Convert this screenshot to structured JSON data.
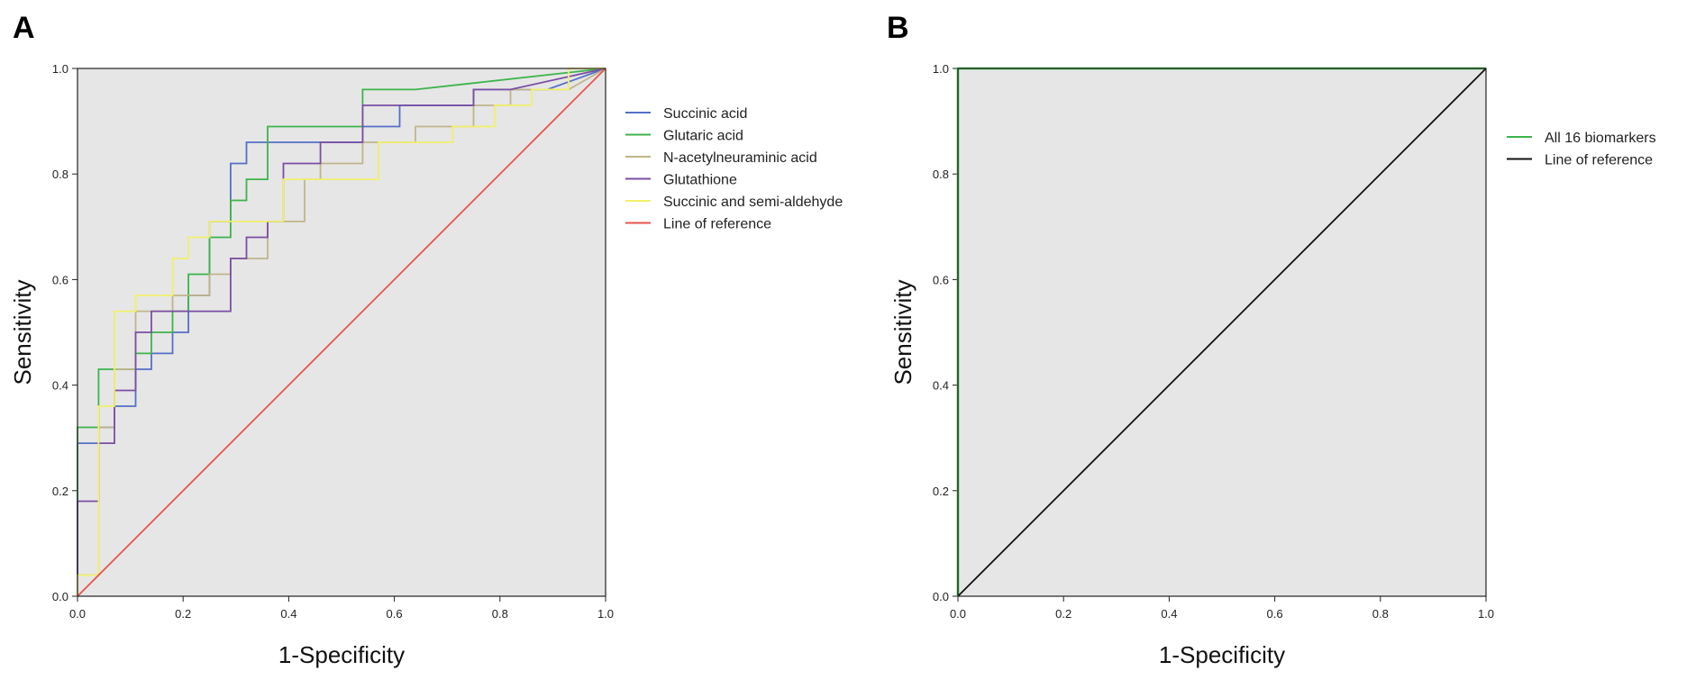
{
  "chart_data": [
    {
      "type": "line",
      "panel": "A",
      "xlabel": "1-Specificity",
      "ylabel": "Sensitivity",
      "xlim": [
        0,
        1
      ],
      "ylim": [
        0,
        1
      ],
      "xticks": [
        "0.0",
        "0.2",
        "0.4",
        "0.6",
        "0.8",
        "1.0"
      ],
      "yticks": [
        "0.0",
        "0.2",
        "0.4",
        "0.6",
        "0.8",
        "1.0"
      ],
      "grid": false,
      "legend_position": "right",
      "series": [
        {
          "name": "Succinic acid",
          "color": "#5470c6",
          "step": true,
          "x": [
            0,
            0,
            0.04,
            0.04,
            0.07,
            0.07,
            0.11,
            0.11,
            0.14,
            0.14,
            0.18,
            0.18,
            0.21,
            0.21,
            0.25,
            0.25,
            0.29,
            0.29,
            0.32,
            0.32,
            0.39,
            0.39,
            0.54,
            0.54,
            0.61,
            0.61,
            0.75,
            0.75,
            0.89,
            1.0
          ],
          "y": [
            0,
            0.29,
            0.29,
            0.32,
            0.32,
            0.36,
            0.36,
            0.43,
            0.43,
            0.46,
            0.46,
            0.5,
            0.5,
            0.57,
            0.57,
            0.71,
            0.71,
            0.82,
            0.82,
            0.86,
            0.86,
            0.86,
            0.86,
            0.89,
            0.89,
            0.93,
            0.93,
            0.96,
            0.96,
            1.0
          ]
        },
        {
          "name": "Glutaric acid",
          "color": "#3cb44b",
          "step": true,
          "x": [
            0,
            0,
            0.04,
            0.04,
            0.07,
            0.07,
            0.11,
            0.11,
            0.14,
            0.14,
            0.18,
            0.18,
            0.21,
            0.21,
            0.25,
            0.25,
            0.29,
            0.29,
            0.32,
            0.32,
            0.36,
            0.36,
            0.54,
            0.54,
            0.64,
            1.0
          ],
          "y": [
            0,
            0.32,
            0.32,
            0.43,
            0.43,
            0.43,
            0.43,
            0.46,
            0.46,
            0.5,
            0.5,
            0.54,
            0.54,
            0.61,
            0.61,
            0.68,
            0.68,
            0.75,
            0.75,
            0.79,
            0.79,
            0.89,
            0.89,
            0.96,
            0.96,
            1.0
          ]
        },
        {
          "name": "N-acetylneuraminic acid",
          "color": "#c0b58a",
          "step": true,
          "x": [
            0,
            0,
            0.04,
            0.04,
            0.07,
            0.07,
            0.11,
            0.11,
            0.18,
            0.18,
            0.25,
            0.25,
            0.29,
            0.29,
            0.36,
            0.36,
            0.43,
            0.43,
            0.46,
            0.46,
            0.54,
            0.54,
            0.64,
            0.64,
            0.75,
            0.75,
            0.82,
            0.82,
            0.93,
            1.0
          ],
          "y": [
            0,
            0.04,
            0.04,
            0.32,
            0.32,
            0.43,
            0.43,
            0.54,
            0.54,
            0.57,
            0.57,
            0.61,
            0.61,
            0.64,
            0.64,
            0.71,
            0.71,
            0.79,
            0.79,
            0.82,
            0.82,
            0.86,
            0.86,
            0.89,
            0.89,
            0.93,
            0.93,
            0.96,
            0.96,
            1.0
          ]
        },
        {
          "name": "Glutathione",
          "color": "#7b4ea3",
          "step": true,
          "x": [
            0,
            0,
            0.04,
            0.04,
            0.07,
            0.07,
            0.11,
            0.11,
            0.14,
            0.14,
            0.21,
            0.21,
            0.25,
            0.25,
            0.29,
            0.29,
            0.32,
            0.32,
            0.36,
            0.36,
            0.39,
            0.39,
            0.46,
            0.46,
            0.54,
            0.54,
            0.68,
            0.68,
            0.75,
            0.75,
            0.82,
            1.0
          ],
          "y": [
            0,
            0.18,
            0.18,
            0.29,
            0.29,
            0.39,
            0.39,
            0.5,
            0.5,
            0.54,
            0.54,
            0.54,
            0.54,
            0.54,
            0.54,
            0.64,
            0.64,
            0.68,
            0.68,
            0.71,
            0.71,
            0.82,
            0.82,
            0.86,
            0.86,
            0.93,
            0.93,
            0.93,
            0.93,
            0.96,
            0.96,
            1.0
          ]
        },
        {
          "name": "Succinic and semi-aldehyde",
          "color": "#f2ef6b",
          "step": true,
          "x": [
            0,
            0,
            0.04,
            0.04,
            0.07,
            0.07,
            0.11,
            0.11,
            0.18,
            0.18,
            0.21,
            0.21,
            0.25,
            0.25,
            0.29,
            0.29,
            0.39,
            0.39,
            0.43,
            0.43,
            0.57,
            0.57,
            0.71,
            0.71,
            0.79,
            0.79,
            0.86,
            0.86,
            0.93,
            0.93,
            1.0
          ],
          "y": [
            0,
            0.04,
            0.04,
            0.36,
            0.36,
            0.54,
            0.54,
            0.57,
            0.57,
            0.64,
            0.64,
            0.68,
            0.68,
            0.71,
            0.71,
            0.71,
            0.71,
            0.79,
            0.79,
            0.79,
            0.79,
            0.86,
            0.86,
            0.89,
            0.89,
            0.93,
            0.93,
            0.96,
            0.96,
            1.0,
            1.0
          ]
        },
        {
          "name": "Line of reference",
          "color": "#e8544a",
          "step": false,
          "x": [
            0,
            1
          ],
          "y": [
            0,
            1
          ]
        }
      ]
    },
    {
      "type": "line",
      "panel": "B",
      "xlabel": "1-Specificity",
      "ylabel": "Sensitivity",
      "xlim": [
        0,
        1
      ],
      "ylim": [
        0,
        1
      ],
      "xticks": [
        "0.0",
        "0.2",
        "0.4",
        "0.6",
        "0.8",
        "1.0"
      ],
      "yticks": [
        "0.0",
        "0.2",
        "0.4",
        "0.6",
        "0.8",
        "1.0"
      ],
      "grid": false,
      "legend_position": "right",
      "series": [
        {
          "name": "All 16 biomarkers",
          "color": "#3cb44b",
          "step": true,
          "x": [
            0,
            0,
            1
          ],
          "y": [
            0,
            1,
            1
          ]
        },
        {
          "name": "Line of reference",
          "color": "#111111",
          "step": false,
          "x": [
            0,
            1
          ],
          "y": [
            0,
            1
          ]
        }
      ]
    }
  ]
}
